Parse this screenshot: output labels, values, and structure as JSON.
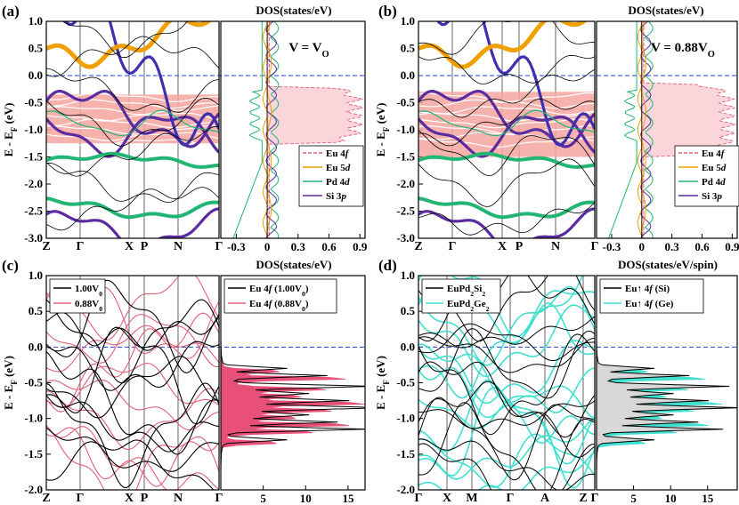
{
  "panel_labels": [
    "(a)",
    "(b)",
    "(c)",
    "(d)"
  ],
  "y_axis_label": "E - E_F (eV)",
  "chart_data": [
    {
      "id": "a",
      "type": "line",
      "title": "DOS(states/eV)",
      "annotation": "V = V_O",
      "kpath": [
        "Z",
        "Γ",
        "X",
        "P",
        "N",
        "Γ"
      ],
      "ylim": [
        -3.0,
        1.0
      ],
      "yticks": [
        1.0,
        0.5,
        0.0,
        -0.5,
        -1.0,
        -1.5,
        -2.0,
        -2.5,
        -3.0
      ],
      "dos_xlim": [
        -0.45,
        0.95
      ],
      "dos_xticks": [
        "-0.3",
        "0",
        "0.3",
        "0.6",
        "0.9"
      ],
      "legend": [
        {
          "name": "Eu 4f",
          "color": "#e0607a",
          "style": "dashed"
        },
        {
          "name": "Eu 5d",
          "color": "#f0a000",
          "style": "solid"
        },
        {
          "name": "Pd 4d",
          "color": "#22b573",
          "style": "solid"
        },
        {
          "name": "Si 3p",
          "color": "#5b2ca0",
          "style": "solid"
        }
      ],
      "fermi_level": 0.0
    },
    {
      "id": "b",
      "type": "line",
      "title": "DOS(states/eV)",
      "annotation": "V = 0.88V_O",
      "kpath": [
        "Z",
        "Γ",
        "X",
        "P",
        "N",
        "Γ"
      ],
      "ylim": [
        -3.0,
        1.0
      ],
      "yticks": [
        1.0,
        0.5,
        0.0,
        -0.5,
        -1.0,
        -1.5,
        -2.0,
        -2.5,
        -3.0
      ],
      "dos_xlim": [
        -0.45,
        0.95
      ],
      "dos_xticks": [
        "-0.3",
        "0",
        "0.3",
        "0.6",
        "0.9"
      ],
      "legend": [
        {
          "name": "Eu 4f",
          "color": "#e0607a",
          "style": "dashed"
        },
        {
          "name": "Eu 5d",
          "color": "#f0a000",
          "style": "solid"
        },
        {
          "name": "Pd 4d",
          "color": "#22b573",
          "style": "solid"
        },
        {
          "name": "Si 3p",
          "color": "#5b2ca0",
          "style": "solid"
        }
      ],
      "fermi_level": 0.0
    },
    {
      "id": "c",
      "type": "line",
      "title": "DOS(states/eV)",
      "kpath": [
        "Z",
        "Γ",
        "X",
        "P",
        "N",
        "Γ"
      ],
      "ylim": [
        -2.0,
        1.0
      ],
      "yticks": [
        1.0,
        0.5,
        0.0,
        -0.5,
        -1.0,
        -1.5,
        -2.0
      ],
      "dos_xlim": [
        0,
        17
      ],
      "dos_xticks": [
        "5",
        "10",
        "15"
      ],
      "band_legend": [
        {
          "name": "1.00V_0",
          "color": "#000000"
        },
        {
          "name": "0.88V_0",
          "color": "#e0607a"
        }
      ],
      "dos_legend": [
        {
          "name": "Eu 4f (1.00V_0)",
          "color": "#000000"
        },
        {
          "name": "Eu 4f (0.88V_0)",
          "color": "#e0607a"
        }
      ],
      "fermi_level": 0.0
    },
    {
      "id": "d",
      "type": "line",
      "title": "DOS(states/eV/spin)",
      "kpath": [
        "Γ",
        "X",
        "M",
        "Γ",
        "A",
        "Z",
        "Γ"
      ],
      "ylim": [
        -2.0,
        1.0
      ],
      "yticks": [
        1.0,
        0.5,
        0.0,
        -0.5,
        -1.0,
        -1.5,
        -2.0
      ],
      "dos_xlim": [
        0,
        19
      ],
      "dos_xticks": [
        "5",
        "10",
        "15"
      ],
      "band_legend": [
        {
          "name": "EuPd2Si2",
          "color": "#000000"
        },
        {
          "name": "EuPd2Ge2",
          "color": "#40e0d0"
        }
      ],
      "dos_legend": [
        {
          "name": "Eu↑ 4f (Si)",
          "color": "#000000"
        },
        {
          "name": "Eu↑ 4f (Ge)",
          "color": "#40e0d0"
        }
      ],
      "fermi_level": 0.0
    }
  ]
}
